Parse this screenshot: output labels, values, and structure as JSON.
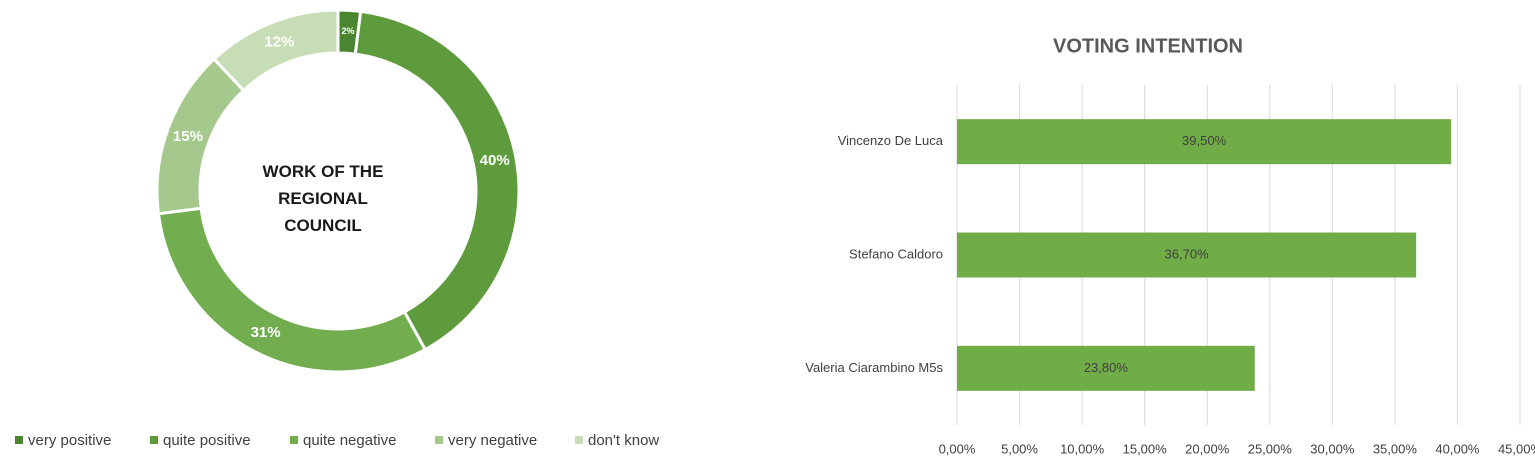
{
  "chart_data": [
    {
      "type": "donut",
      "title": "WORK OF THE REGIONAL COUNCIL",
      "categories": [
        "very positive",
        "quite positive",
        "quite negative",
        "very negative",
        "don't know"
      ],
      "values": [
        2,
        40,
        31,
        15,
        12
      ],
      "value_labels": [
        "2%",
        "40%",
        "31%",
        "15%",
        "12%"
      ],
      "colors": [
        "#4a8530",
        "#5e9b3c",
        "#72ae4f",
        "#a5c98c",
        "#c6ddb5"
      ],
      "legend": "bottom"
    },
    {
      "type": "hbar",
      "title": "VOTING INTENTION",
      "categories": [
        "Vincenzo De Luca",
        "Stefano Caldoro",
        "Valeria Ciarambino M5s"
      ],
      "values": [
        39.5,
        36.7,
        23.8
      ],
      "value_labels": [
        "39,50%",
        "36,70%",
        "23,80%"
      ],
      "color": "#70ad47",
      "xlim": [
        0,
        45
      ],
      "xticks": [
        {
          "value": 0,
          "label": "0,00%"
        },
        {
          "value": 5,
          "label": "5,00%"
        },
        {
          "value": 10,
          "label": "10,00%"
        },
        {
          "value": 15,
          "label": "15,00%"
        },
        {
          "value": 20,
          "label": "20,00%"
        },
        {
          "value": 25,
          "label": "25,00%"
        },
        {
          "value": 30,
          "label": "30,00%"
        },
        {
          "value": 35,
          "label": "35,00%"
        },
        {
          "value": 40,
          "label": "40,00%"
        },
        {
          "value": 45,
          "label": "45,00%"
        }
      ],
      "grid": true
    }
  ]
}
